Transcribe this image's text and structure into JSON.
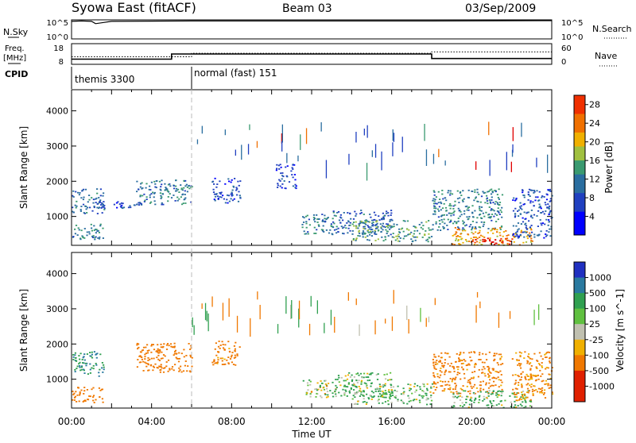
{
  "header": {
    "station": "Syowa East (fitACF)",
    "beam": "Beam 03",
    "date": "03/Sep/2009"
  },
  "panels": {
    "nsky_label": "N.Sky",
    "nsky_ticks": [
      "10^5",
      "10^0"
    ],
    "nsearch_label": "N.Search",
    "nsearch_ticks": [
      "10^5",
      "10^0"
    ],
    "freq_label": "Freq.",
    "freq_unit": "[MHz]",
    "freq_ticks": [
      "18",
      "8"
    ],
    "nave_label": "Nave",
    "nave_ticks": [
      "60",
      "0"
    ],
    "cpid_label": "CPID",
    "cpid_segments": [
      {
        "name": "themis 3300",
        "start_hour": 0,
        "end_hour": 6
      },
      {
        "name": "normal (fast) 151",
        "start_hour": 6,
        "end_hour": 24
      }
    ]
  },
  "chart_data": [
    {
      "type": "line",
      "title": "",
      "ylabel": "N.Sky",
      "ylim": [
        0,
        5
      ],
      "yscale": "log",
      "series": [
        {
          "name": "N.Sky",
          "x": [
            0.0,
            0.5,
            1.0,
            1.2,
            2.0,
            6.0,
            12.0,
            18.0,
            23.5,
            24.0
          ],
          "y": [
            4.6,
            4.7,
            4.6,
            4.0,
            4.6,
            4.7,
            4.7,
            4.7,
            4.8,
            4.8
          ]
        }
      ]
    },
    {
      "type": "line",
      "title": "",
      "ylabel": "Freq. [MHz]",
      "ylim": [
        8,
        18
      ],
      "series": [
        {
          "name": "Freq.",
          "x": [
            0,
            5,
            5,
            18,
            18,
            24
          ],
          "y": [
            10.5,
            10.5,
            13.0,
            13.0,
            10.8,
            10.8
          ]
        },
        {
          "name": "Nave",
          "x": [
            0,
            6,
            6,
            18,
            18,
            24
          ],
          "y": [
            22,
            22,
            32,
            32,
            36,
            36
          ]
        }
      ]
    },
    {
      "type": "heatmap",
      "title": "Power",
      "xlabel": "Time UT",
      "ylabel": "Slant Range [km]",
      "xlim": [
        0,
        24
      ],
      "ylim": [
        180,
        4600
      ],
      "x_ticks": [
        "00:00",
        "04:00",
        "08:00",
        "12:00",
        "16:00",
        "20:00",
        "00:00"
      ],
      "y_ticks": [
        1000,
        2000,
        3000,
        4000
      ],
      "colorbar": {
        "label": "Power [dB]",
        "ticks": [
          4,
          8,
          12,
          16,
          20,
          24,
          28
        ],
        "range": [
          0,
          30
        ]
      },
      "regions": [
        {
          "t": [
            0.0,
            1.6
          ],
          "r": [
            1100,
            1800
          ],
          "v": 10
        },
        {
          "t": [
            0.0,
            1.6
          ],
          "r": [
            350,
            800
          ],
          "v": 12
        },
        {
          "t": [
            1.0,
            3.5
          ],
          "r": [
            1250,
            1450
          ],
          "v": 8
        },
        {
          "t": [
            3.2,
            6.0
          ],
          "r": [
            1350,
            2050
          ],
          "v": 12
        },
        {
          "t": [
            7.0,
            8.4
          ],
          "r": [
            1400,
            2100
          ],
          "v": 8
        },
        {
          "t": [
            10.2,
            11.2
          ],
          "r": [
            1800,
            2500
          ],
          "v": 6
        },
        {
          "t": [
            11.5,
            13.2
          ],
          "r": [
            500,
            1100
          ],
          "v": 12
        },
        {
          "t": [
            13.0,
            16.0
          ],
          "r": [
            500,
            1200
          ],
          "v": 10
        },
        {
          "t": [
            14.0,
            18.0
          ],
          "r": [
            300,
            900
          ],
          "v": 14
        },
        {
          "t": [
            18.0,
            21.5
          ],
          "r": [
            600,
            1800
          ],
          "v": 12
        },
        {
          "t": [
            19.0,
            23.0
          ],
          "r": [
            200,
            700
          ],
          "v": 22
        },
        {
          "t": [
            20.0,
            22.0
          ],
          "r": [
            200,
            400
          ],
          "v": 30
        },
        {
          "t": [
            22.0,
            24.0
          ],
          "r": [
            400,
            1800
          ],
          "v": 8
        }
      ]
    },
    {
      "type": "heatmap",
      "title": "Velocity",
      "xlabel": "Time UT",
      "ylabel": "Slant Range [km]",
      "xlim": [
        0,
        24
      ],
      "ylim": [
        180,
        4600
      ],
      "x_ticks": [
        "00:00",
        "04:00",
        "08:00",
        "12:00",
        "16:00",
        "20:00",
        "00:00"
      ],
      "y_ticks": [
        1000,
        2000,
        3000,
        4000
      ],
      "colorbar": {
        "label": "Velocity [m s^-1]",
        "ticks": [
          "1000",
          "500",
          "100",
          "25",
          "-25",
          "-100",
          "-500",
          "-1000"
        ]
      },
      "regions": [
        {
          "t": [
            0.0,
            1.6
          ],
          "r": [
            1100,
            1800
          ],
          "v": 300
        },
        {
          "t": [
            0.0,
            1.6
          ],
          "r": [
            350,
            800
          ],
          "v": -300
        },
        {
          "t": [
            3.2,
            6.0
          ],
          "r": [
            1200,
            2050
          ],
          "v": -300
        },
        {
          "t": [
            7.0,
            8.4
          ],
          "r": [
            1400,
            2100
          ],
          "v": -200
        },
        {
          "t": [
            11.5,
            13.2
          ],
          "r": [
            500,
            1000
          ],
          "v": 0
        },
        {
          "t": [
            13.0,
            16.0
          ],
          "r": [
            500,
            1200
          ],
          "v": 80
        },
        {
          "t": [
            14.0,
            18.0
          ],
          "r": [
            300,
            900
          ],
          "v": 60
        },
        {
          "t": [
            18.0,
            21.5
          ],
          "r": [
            600,
            1800
          ],
          "v": -200
        },
        {
          "t": [
            19.0,
            23.0
          ],
          "r": [
            200,
            700
          ],
          "v": 80
        },
        {
          "t": [
            22.0,
            24.0
          ],
          "r": [
            400,
            1800
          ],
          "v": -150
        }
      ]
    }
  ]
}
